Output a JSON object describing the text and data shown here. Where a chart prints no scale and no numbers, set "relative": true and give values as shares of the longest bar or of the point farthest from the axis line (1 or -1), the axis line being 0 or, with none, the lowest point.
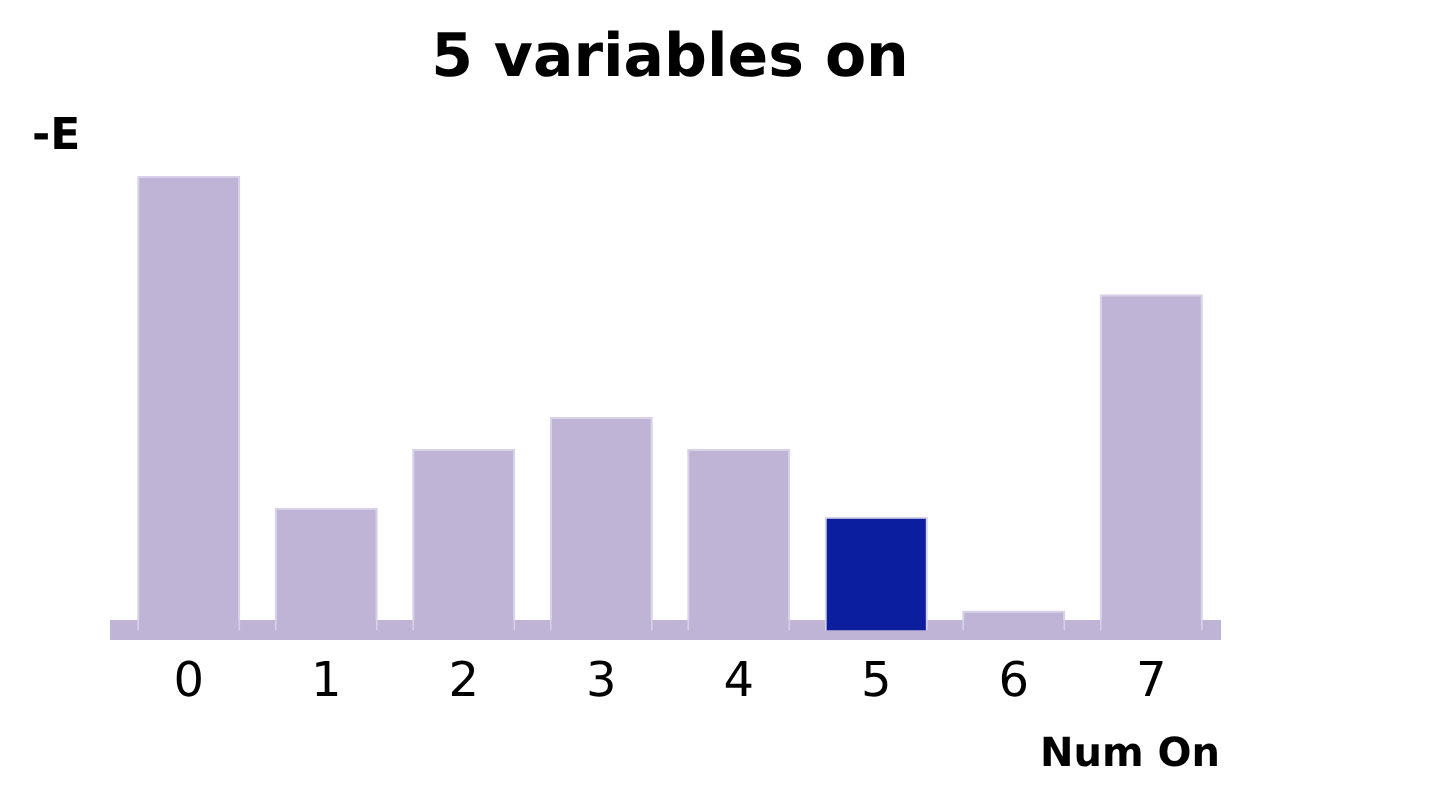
{
  "chart_data": {
    "type": "bar",
    "title": "5 variables on",
    "xlabel": "Num On",
    "ylabel": "-E",
    "relative": true,
    "categories": [
      "0",
      "1",
      "2",
      "3",
      "4",
      "5",
      "6",
      "7"
    ],
    "values": [
      1,
      0.27,
      0.4,
      0.47,
      0.4,
      0.25,
      0.044,
      0.74
    ],
    "colors": [
      "#bfb3d6",
      "#bfb3d6",
      "#bfb3d6",
      "#bfb3d6",
      "#bfb3d6",
      "#0a1e9e",
      "#bfb3d6",
      "#bfb3d6"
    ],
    "grid": false,
    "legend": false
  }
}
